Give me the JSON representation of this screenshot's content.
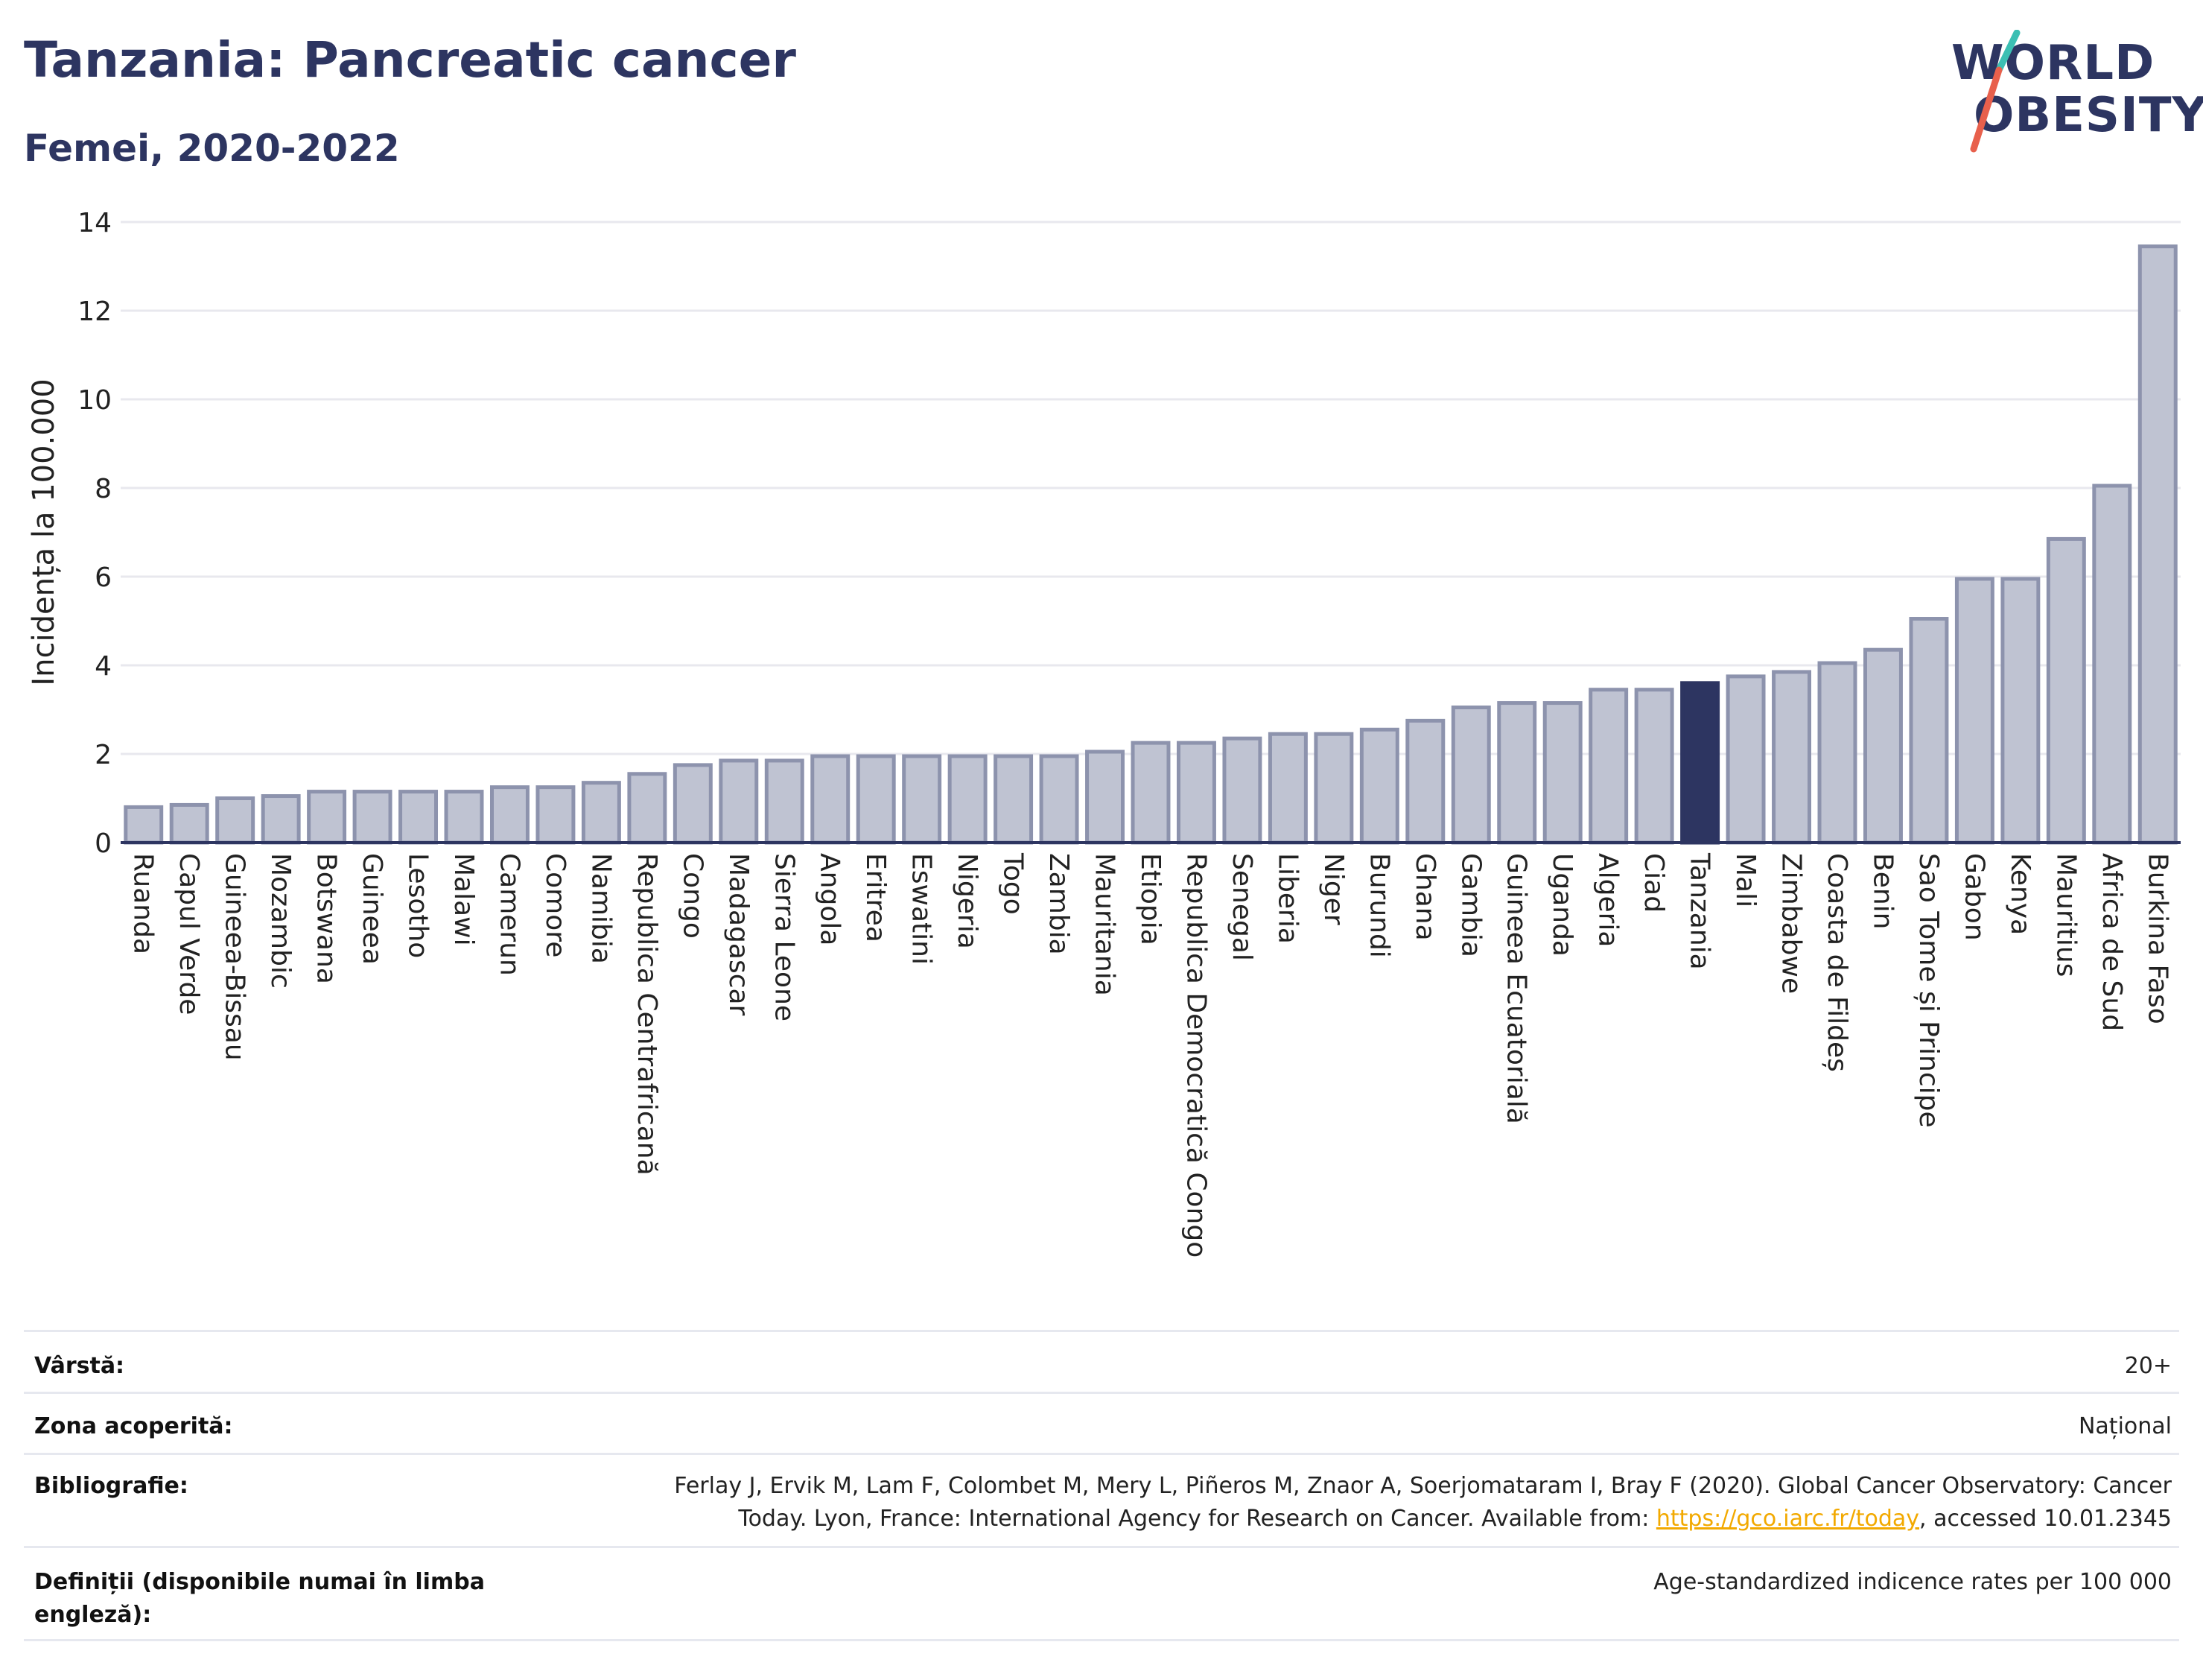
{
  "header": {
    "title": "Tanzania: Pancreatic cancer",
    "subtitle": "Femei, 2020-2022"
  },
  "logo": {
    "line1": "WORLD",
    "line2": "OBESITY",
    "accent_colors": [
      "#e8604c",
      "#3bbfb3"
    ]
  },
  "colors": {
    "bar_default": "#bfc3d2",
    "bar_border": "#8d93ad",
    "bar_highlight": "#2d3561",
    "axis": "#2d3561",
    "grid": "#e8e8ee"
  },
  "chart_data": {
    "type": "bar",
    "ylabel": "Incidența la 100.000",
    "ylim": [
      0,
      14
    ],
    "yticks": [
      0,
      2,
      4,
      6,
      8,
      10,
      12,
      14
    ],
    "grid": true,
    "highlight": "Tanzania",
    "categories": [
      "Ruanda",
      "Capul Verde",
      "Guineea-Bissau",
      "Mozambic",
      "Botswana",
      "Guineea",
      "Lesotho",
      "Malawi",
      "Camerun",
      "Comore",
      "Namibia",
      "Republica Centrafricană",
      "Congo",
      "Madagascar",
      "Sierra Leone",
      "Angola",
      "Eritrea",
      "Eswatini",
      "Nigeria",
      "Togo",
      "Zambia",
      "Mauritania",
      "Etiopia",
      "Republica Democratică Congo",
      "Senegal",
      "Liberia",
      "Niger",
      "Burundi",
      "Ghana",
      "Gambia",
      "Guineea Ecuatorială",
      "Uganda",
      "Algeria",
      "Ciad",
      "Tanzania",
      "Mali",
      "Zimbabwe",
      "Coasta de Fildeș",
      "Benin",
      "Sao Tome și Principe",
      "Gabon",
      "Kenya",
      "Mauritius",
      "Africa de Sud",
      "Burkina Faso"
    ],
    "values": [
      0.8,
      0.85,
      1.0,
      1.05,
      1.15,
      1.15,
      1.15,
      1.15,
      1.25,
      1.25,
      1.35,
      1.55,
      1.75,
      1.85,
      1.85,
      1.95,
      1.95,
      1.95,
      1.95,
      1.95,
      1.95,
      2.05,
      2.25,
      2.25,
      2.35,
      2.45,
      2.45,
      2.55,
      2.75,
      3.05,
      3.15,
      3.15,
      3.45,
      3.45,
      3.6,
      3.75,
      3.85,
      4.05,
      4.35,
      5.05,
      5.95,
      5.95,
      6.85,
      8.05,
      13.45
    ]
  },
  "meta": {
    "age_label": "Vârstă:",
    "age_value": "20+",
    "area_label": "Zona acoperită:",
    "area_value": "Național",
    "biblio_label": "Bibliografie:",
    "biblio_line1": "Ferlay J, Ervik M, Lam F, Colombet M, Mery L, Piñeros M, Znaor A, Soerjomataram I, Bray F (2020). Global Cancer Observatory: Cancer",
    "biblio_line2_pre": "Today. Lyon, France: International Agency for Research on Cancer. Available from: ",
    "biblio_link": "https://gco.iarc.fr/today",
    "biblio_line2_post": ", accessed 10.01.2345",
    "def_label_1": "Definiții (disponibile numai în limba",
    "def_label_2": "engleză):",
    "def_value": "Age-standardized indicence rates per 100 000"
  }
}
